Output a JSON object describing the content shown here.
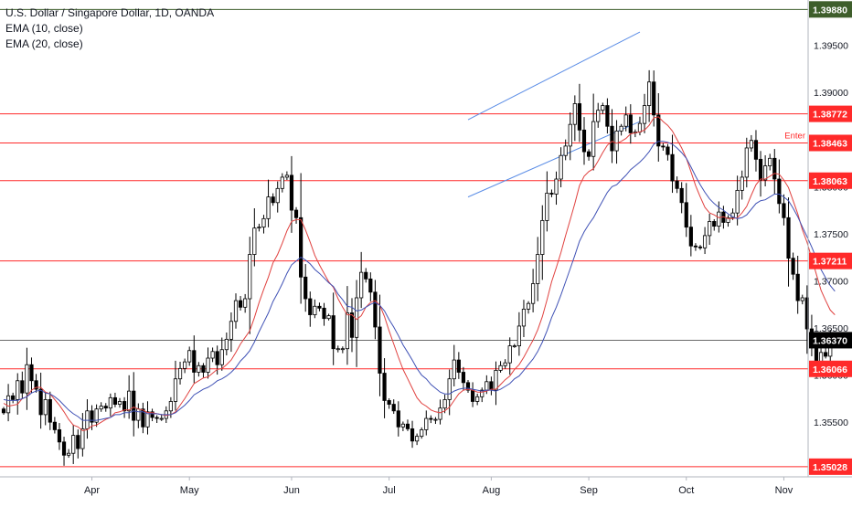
{
  "legend": {
    "symbol": "U.S. Dollar / Singapore Dollar, 1D, OANDA",
    "ema_fast": "EMA (10, close)",
    "ema_slow": "EMA (20, close)"
  },
  "chart_data": {
    "type": "candlestick",
    "x_ticks": [
      "Apr",
      "May",
      "Jun",
      "Jul",
      "Aug",
      "Sep",
      "Oct",
      "Nov"
    ],
    "y_ticks": [
      "1.39880",
      "1.39500",
      "1.39000",
      "1.38500",
      "1.38000",
      "1.37500",
      "1.37000",
      "1.36500",
      "1.36000",
      "1.35500",
      "1.35000"
    ],
    "ylim": [
      1.3492,
      1.3998
    ],
    "colors": {
      "up": "#ffffff",
      "down": "#000000",
      "ema_fast": "#e0413f",
      "ema_slow": "#3f51b5",
      "level_line": "#ff2a2a",
      "trend_channel": "#5b8de6",
      "price_line": "#555555"
    },
    "horizontal_levels": [
      {
        "value": 1.3988,
        "label": "1.39880",
        "style": "dark"
      },
      {
        "value": 1.38772,
        "label": "1.38772",
        "style": "red"
      },
      {
        "value": 1.38463,
        "label": "1.38463",
        "style": "red"
      },
      {
        "value": 1.38063,
        "label": "1.38063",
        "style": "red"
      },
      {
        "value": 1.37211,
        "label": "1.37211",
        "style": "red"
      },
      {
        "value": 1.3637,
        "label": "1.36370",
        "style": "last"
      },
      {
        "value": 1.36066,
        "label": "1.36066",
        "style": "red"
      },
      {
        "value": 1.35028,
        "label": "1.35028",
        "style": "red"
      }
    ],
    "annotations": [
      {
        "text": "Enter",
        "value": 1.38463
      }
    ],
    "trend_channel": {
      "upper": [
        [
          1.3871,
          1.3964
        ]
      ],
      "lower": [
        [
          1.3789,
          1.3869
        ]
      ]
    },
    "candles": {
      "open": [
        1.3564,
        1.356,
        1.3578,
        1.3574,
        1.3594,
        1.3581,
        1.3611,
        1.3594,
        1.3585,
        1.3558,
        1.3574,
        1.355,
        1.3542,
        1.3529,
        1.3515,
        1.3517,
        1.3536,
        1.3522,
        1.3543,
        1.3562,
        1.355,
        1.3564,
        1.3567,
        1.3565,
        1.3576,
        1.3569,
        1.3572,
        1.3562,
        1.3583,
        1.3552,
        1.3564,
        1.3545,
        1.3561,
        1.3555,
        1.3554,
        1.3554,
        1.3562,
        1.3572,
        1.3596,
        1.3607,
        1.3614,
        1.3626,
        1.3603,
        1.361,
        1.3603,
        1.3618,
        1.3625,
        1.3611,
        1.3627,
        1.3638,
        1.3657,
        1.3679,
        1.3672,
        1.3681,
        1.3728,
        1.3756,
        1.3757,
        1.3766,
        1.3789,
        1.3783,
        1.3798,
        1.381,
        1.3812,
        1.3775,
        1.3767,
        1.3704,
        1.3681,
        1.3664,
        1.3673,
        1.3671,
        1.366,
        1.3663,
        1.3628,
        1.3628,
        1.3628,
        1.3666,
        1.364,
        1.3682,
        1.3709,
        1.3702,
        1.3688,
        1.3651,
        1.3602,
        1.3573,
        1.3569,
        1.3562,
        1.3545,
        1.3548,
        1.3543,
        1.353,
        1.3535,
        1.3542,
        1.3554,
        1.3553,
        1.3553,
        1.3565,
        1.3574,
        1.3596,
        1.3616,
        1.3603,
        1.3592,
        1.3584,
        1.3572,
        1.3577,
        1.3584,
        1.3593,
        1.3584,
        1.3605,
        1.361,
        1.3613,
        1.3631,
        1.3631,
        1.3652,
        1.367,
        1.3676,
        1.3697,
        1.3728,
        1.3764,
        1.3793,
        1.3792,
        1.3808,
        1.3833,
        1.3843,
        1.3866,
        1.3888,
        1.386,
        1.3837,
        1.3832,
        1.3869,
        1.3881,
        1.3886,
        1.3864,
        1.3838,
        1.3859,
        1.3864,
        1.3876,
        1.3857,
        1.3858,
        1.3867,
        1.3886,
        1.3911,
        1.3876,
        1.3843,
        1.3842,
        1.3834,
        1.3806,
        1.3798,
        1.3783,
        1.3757,
        1.3737,
        1.3736,
        1.3735,
        1.3748,
        1.3763,
        1.3758,
        1.3773,
        1.3762,
        1.3767,
        1.3772,
        1.3796,
        1.381,
        1.3841,
        1.3849,
        1.3829,
        1.3807,
        1.3822,
        1.383,
        1.3808,
        1.3782,
        1.3767,
        1.3724,
        1.3707,
        1.3679,
        1.3682,
        1.3649,
        1.3629,
        1.3614,
        1.3624,
        1.362
      ],
      "close": [
        1.356,
        1.3578,
        1.3574,
        1.3594,
        1.3581,
        1.3611,
        1.3594,
        1.3585,
        1.3558,
        1.3574,
        1.355,
        1.3542,
        1.3529,
        1.3515,
        1.3517,
        1.3536,
        1.3522,
        1.3543,
        1.3562,
        1.355,
        1.3564,
        1.3567,
        1.3565,
        1.3576,
        1.3569,
        1.3572,
        1.3562,
        1.3583,
        1.3552,
        1.3564,
        1.3545,
        1.3561,
        1.3555,
        1.3554,
        1.3554,
        1.3562,
        1.3572,
        1.3596,
        1.3607,
        1.3614,
        1.3626,
        1.3603,
        1.361,
        1.3603,
        1.3618,
        1.3625,
        1.3611,
        1.3627,
        1.3638,
        1.3657,
        1.3679,
        1.3672,
        1.3681,
        1.3728,
        1.3756,
        1.3757,
        1.3766,
        1.3789,
        1.3783,
        1.3798,
        1.381,
        1.3812,
        1.3775,
        1.3767,
        1.3704,
        1.3681,
        1.3664,
        1.3673,
        1.3671,
        1.366,
        1.3663,
        1.3628,
        1.3628,
        1.3628,
        1.3666,
        1.364,
        1.3682,
        1.3709,
        1.3702,
        1.3688,
        1.3651,
        1.3602,
        1.3573,
        1.3569,
        1.3562,
        1.3545,
        1.3548,
        1.3543,
        1.353,
        1.3535,
        1.3542,
        1.3554,
        1.3553,
        1.3553,
        1.3565,
        1.3574,
        1.3596,
        1.3616,
        1.3603,
        1.3592,
        1.3584,
        1.3572,
        1.3577,
        1.3584,
        1.3593,
        1.3584,
        1.3605,
        1.361,
        1.3613,
        1.3631,
        1.3631,
        1.3652,
        1.367,
        1.3676,
        1.3697,
        1.3728,
        1.3764,
        1.3793,
        1.3792,
        1.3808,
        1.3833,
        1.3843,
        1.3866,
        1.3888,
        1.386,
        1.3837,
        1.3832,
        1.3869,
        1.3881,
        1.3886,
        1.3864,
        1.3838,
        1.3859,
        1.3864,
        1.3876,
        1.3857,
        1.3858,
        1.3867,
        1.3886,
        1.3911,
        1.3876,
        1.3843,
        1.3842,
        1.3834,
        1.3806,
        1.3798,
        1.3783,
        1.3757,
        1.3737,
        1.3736,
        1.3735,
        1.3748,
        1.3763,
        1.3758,
        1.3773,
        1.3762,
        1.3767,
        1.3772,
        1.3796,
        1.381,
        1.3841,
        1.3849,
        1.3829,
        1.3807,
        1.3822,
        1.383,
        1.3808,
        1.3782,
        1.3767,
        1.3724,
        1.3707,
        1.3679,
        1.3682,
        1.3649,
        1.3629,
        1.3614,
        1.3624,
        1.362,
        1.3637
      ]
    },
    "ema10": [
      1.357,
      1.3567,
      1.3568,
      1.3569,
      1.3575,
      1.3577,
      1.3584,
      1.3587,
      1.3587,
      1.3582,
      1.358,
      1.3574,
      1.3568,
      1.3561,
      1.3553,
      1.3547,
      1.3545,
      1.3541,
      1.3542,
      1.3546,
      1.3547,
      1.355,
      1.3553,
      1.3555,
      1.356,
      1.3561,
      1.3563,
      1.3563,
      1.3566,
      1.3564,
      1.3563,
      1.356,
      1.356,
      1.3559,
      1.3558,
      1.3557,
      1.3558,
      1.3561,
      1.3568,
      1.3575,
      1.3583,
      1.3591,
      1.3594,
      1.3597,
      1.3598,
      1.3602,
      1.3606,
      1.3607,
      1.3611,
      1.3616,
      1.3624,
      1.3633,
      1.364,
      1.3647,
      1.3661,
      1.3677,
      1.3691,
      1.3704,
      1.3719,
      1.3728,
      1.374,
      1.3753,
      1.3763,
      1.3765,
      1.3765,
      1.3754,
      1.3741,
      1.3727,
      1.3717,
      1.3708,
      1.3699,
      1.3693,
      1.3681,
      1.3672,
      1.3664,
      1.3664,
      1.3659,
      1.3663,
      1.3672,
      1.3677,
      1.3679,
      1.3674,
      1.3662,
      1.3647,
      1.3633,
      1.3619,
      1.3606,
      1.3596,
      1.3586,
      1.3576,
      1.357,
      1.3567,
      1.3563,
      1.3561,
      1.356,
      1.3562,
      1.3566,
      1.3573,
      1.358,
      1.3584,
      1.3585,
      1.3584,
      1.3582,
      1.3582,
      1.3583,
      1.3585,
      1.3585,
      1.359,
      1.3595,
      1.3599,
      1.3606,
      1.3611,
      1.3619,
      1.3628,
      1.3637,
      1.3648,
      1.3662,
      1.368,
      1.3699,
      1.3714,
      1.373,
      1.3748,
      1.3765,
      1.3782,
      1.3801,
      1.3811,
      1.3816,
      1.3819,
      1.3827,
      1.3836,
      1.3844,
      1.3848,
      1.3846,
      1.3848,
      1.3851,
      1.3856,
      1.3857,
      1.3858,
      1.386,
      1.3865,
      1.3873,
      1.3874,
      1.3869,
      1.3865,
      1.3859,
      1.385,
      1.3841,
      1.383,
      1.3816,
      1.3801,
      1.3789,
      1.3778,
      1.3772,
      1.377,
      1.3767,
      1.3768,
      1.3766,
      1.3766,
      1.3767,
      1.3772,
      1.3779,
      1.3791,
      1.3802,
      1.3808,
      1.3808,
      1.3811,
      1.3814,
      1.3813,
      1.3807,
      1.3799,
      1.3785,
      1.3771,
      1.3754,
      1.3741,
      1.3724,
      1.3707,
      1.369,
      1.3679,
      1.3669,
      1.3664
    ],
    "ema20": [
      1.3574,
      1.3573,
      1.3573,
      1.3573,
      1.3575,
      1.3577,
      1.3581,
      1.3583,
      1.3584,
      1.3581,
      1.358,
      1.3577,
      1.3573,
      1.3568,
      1.3563,
      1.3559,
      1.3556,
      1.3552,
      1.3552,
      1.3552,
      1.3552,
      1.3553,
      1.3554,
      1.3555,
      1.3558,
      1.3558,
      1.356,
      1.356,
      1.3562,
      1.3561,
      1.3561,
      1.3559,
      1.3559,
      1.3559,
      1.3558,
      1.3558,
      1.3558,
      1.356,
      1.3564,
      1.3568,
      1.3573,
      1.3579,
      1.3582,
      1.3585,
      1.3587,
      1.359,
      1.3594,
      1.3596,
      1.3599,
      1.3603,
      1.3608,
      1.3615,
      1.362,
      1.3626,
      1.3635,
      1.3646,
      1.3656,
      1.3666,
      1.3678,
      1.3687,
      1.3697,
      1.3708,
      1.3717,
      1.3721,
      1.3725,
      1.3722,
      1.3718,
      1.3712,
      1.3708,
      1.3703,
      1.3698,
      1.3694,
      1.3686,
      1.368,
      1.3673,
      1.3672,
      1.3668,
      1.3669,
      1.3672,
      1.3675,
      1.3677,
      1.3674,
      1.3668,
      1.3659,
      1.3651,
      1.3642,
      1.3632,
      1.3624,
      1.3616,
      1.3607,
      1.36,
      1.3596,
      1.359,
      1.3586,
      1.3582,
      1.358,
      1.358,
      1.3583,
      1.3585,
      1.3586,
      1.3586,
      1.3585,
      1.3584,
      1.3583,
      1.3584,
      1.3584,
      1.3583,
      1.3585,
      1.3588,
      1.3591,
      1.3596,
      1.3599,
      1.3605,
      1.3611,
      1.3617,
      1.3625,
      1.3635,
      1.3647,
      1.3661,
      1.3672,
      1.3685,
      1.3699,
      1.3713,
      1.3727,
      1.3742,
      1.3752,
      1.376,
      1.3767,
      1.3776,
      1.3785,
      1.3794,
      1.38,
      1.3802,
      1.3807,
      1.3812,
      1.3818,
      1.3822,
      1.3826,
      1.3831,
      1.3837,
      1.3845,
      1.3848,
      1.3848,
      1.3847,
      1.3845,
      1.3841,
      1.3836,
      1.383,
      1.3821,
      1.3811,
      1.3802,
      1.3794,
      1.3787,
      1.3782,
      1.3778,
      1.3775,
      1.3771,
      1.3768,
      1.3766,
      1.3767,
      1.377,
      1.3776,
      1.3782,
      1.3785,
      1.3786,
      1.3789,
      1.3792,
      1.3792,
      1.3789,
      1.3785,
      1.3777,
      1.3768,
      1.3757,
      1.3747,
      1.3736,
      1.3724,
      1.3712,
      1.3703,
      1.3695,
      1.3689
    ]
  }
}
